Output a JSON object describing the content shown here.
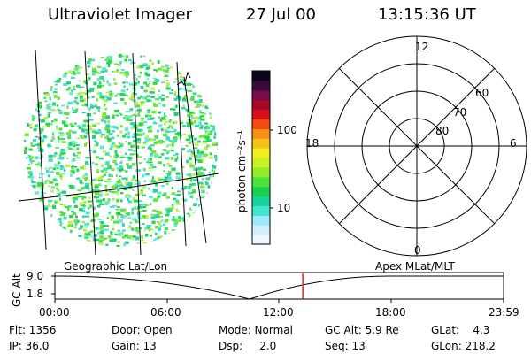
{
  "header": {
    "title": "Ultraviolet Imager",
    "date": "27 Jul 00",
    "time": "13:15:36 UT"
  },
  "colorbar": {
    "unit_label": "photon cm⁻²s⁻¹",
    "ticks": [
      "100",
      "10"
    ],
    "colors": [
      "#eef6ff",
      "#cfeffc",
      "#9fe9ff",
      "#44e6d2",
      "#18d49a",
      "#19d14c",
      "#4be33a",
      "#8fed2a",
      "#c9f020",
      "#f0f020",
      "#f5c21a",
      "#f78f14",
      "#f24a12",
      "#d8101a",
      "#a80826",
      "#7a0a4a",
      "#3a0a3e",
      "#0c0418"
    ]
  },
  "polar": {
    "mlt_labels": [
      "12",
      "18",
      "6",
      "0"
    ],
    "lat_labels": [
      "60",
      "70",
      "80"
    ]
  },
  "timeline": {
    "left_title": "Geographic Lat/Lon",
    "right_title": "Apex MLat/MLT",
    "yaxis_label": "GC Alt",
    "y_ticks": [
      "9.0",
      "1.8"
    ],
    "x_ticks": [
      "00:00",
      "06:00",
      "12:00",
      "18:00",
      "23:59"
    ],
    "marker_time_fraction": 0.5525
  },
  "stats": {
    "flt": "Flt: 1356",
    "ip": "IP: 36.0",
    "door": "Door: Open",
    "gain": "Gain: 13",
    "mode": "Mode: Normal",
    "dsp": "Dsp:     2.0",
    "gcalt": "GC Alt: 5.9 Re",
    "seq": "Seq: 13",
    "glat": "GLat:    4.3",
    "glon": "GLon: 218.2"
  }
}
